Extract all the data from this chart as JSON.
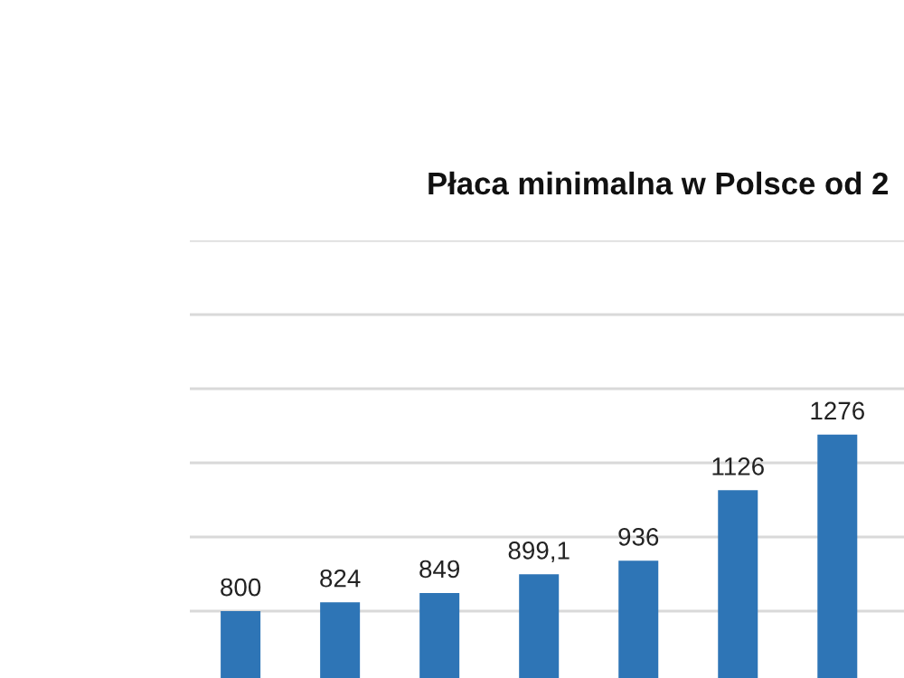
{
  "chart_data": {
    "type": "bar",
    "title": "Płaca minimalna w Polsce od 2",
    "categories": [
      null,
      null,
      null,
      null,
      null,
      null,
      null
    ],
    "values": [
      800,
      824,
      849,
      899.1,
      936,
      1126,
      1276
    ],
    "value_labels": [
      "800",
      "824",
      "849",
      "899,1",
      "936",
      "1126",
      "1276"
    ],
    "color": "#2e75b6",
    "yticks": [
      {
        "value": 800,
        "label": null
      },
      {
        "value": 1000,
        "label": null
      },
      {
        "value": 1200,
        "label": null
      },
      {
        "value": 1400,
        "label": null
      },
      {
        "value": 1600,
        "label": null
      },
      {
        "value": 1800,
        "label": null
      }
    ],
    "grid": "y",
    "legend": false
  }
}
